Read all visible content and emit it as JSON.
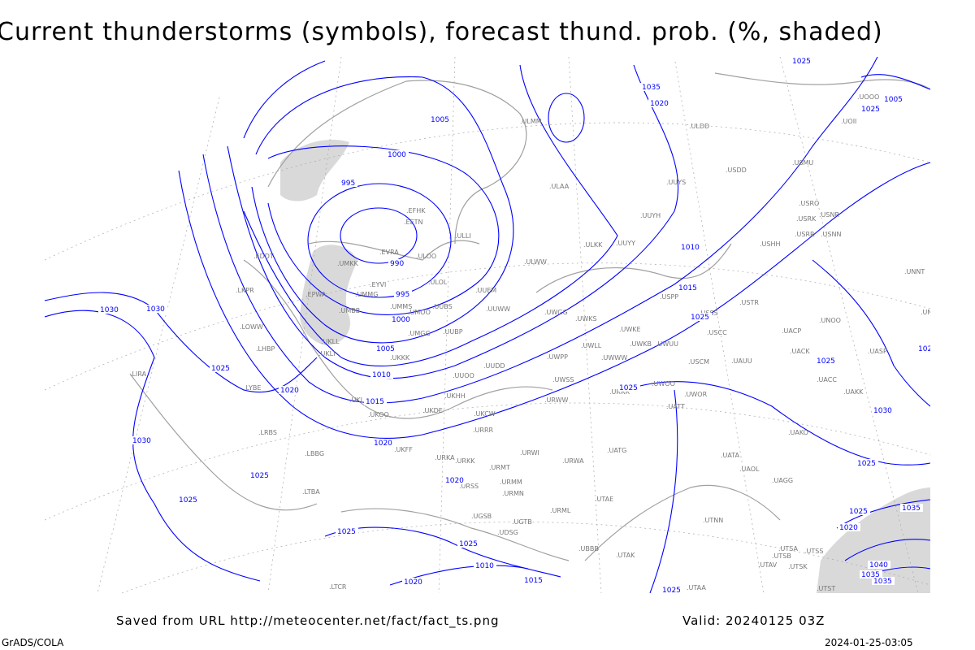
{
  "title": "Current thunderstorms (symbols), forecast thund. prob. (%, shaded)",
  "footer": {
    "saved_from": "Saved from URL http://meteocenter.net/fact/fact_ts.png",
    "valid": "Valid: 20240125 03Z",
    "software": "GrADS/COLA",
    "generated": "2024-01-25-03:05"
  },
  "colors": {
    "isobar": "#0000ff",
    "land": "#a0a0a0",
    "shading": "#d9d9d9",
    "grid": "#999999"
  },
  "isobar_labels": [
    "1030",
    "1005",
    "1000",
    "995",
    "990",
    "995",
    "1000",
    "1005",
    "1010",
    "1015",
    "1020",
    "1025",
    "1035",
    "1030",
    "1025",
    "1020",
    "1015",
    "1010",
    "1005",
    "1025",
    "1025",
    "1020",
    "1030",
    "1025",
    "1025",
    "1020",
    "1025",
    "1025",
    "1030",
    "1025",
    "1035",
    "1040",
    "1035",
    "1035",
    "1025",
    "1020",
    "1025",
    "1025",
    "1020",
    "1015",
    "1010",
    "1020",
    "1025",
    "1025"
  ],
  "stations": [
    "ULLI",
    "EFHK",
    "EETN",
    "EVRA",
    "ULOO",
    "ULOL",
    "UMKK",
    "EYVI",
    "UMMG",
    "EPWA",
    "UMBB",
    "UMMS",
    "UMOO",
    "UUBS",
    "UMGG",
    "UUBP",
    "UUEM",
    "UUWW",
    "UWGG",
    "UWKS",
    "UWKE",
    "UWKB",
    "UWUU",
    "USSS",
    "USCC",
    "USCM",
    "UAUU",
    "UACK",
    "UACP",
    "USTR",
    "USPP",
    "UNOO",
    "UASP",
    "UACC",
    "UAKK",
    "UAKO",
    "UATA",
    "UAOL",
    "UAGG",
    "UTNN",
    "UTSA",
    "UTSS",
    "UTSB",
    "UTAV",
    "UTSK",
    "UTST",
    "UTAA",
    "UTAK",
    "UTAE",
    "URMM",
    "URMN",
    "URMT",
    "URWI",
    "URWA",
    "UATG",
    "URML",
    "UBBB",
    "UGTB",
    "UDSG",
    "UGSB",
    "URSS",
    "URKK",
    "URKA",
    "UKFF",
    "UKOO",
    "UKDE",
    "UKHH",
    "UUOO",
    "UUDD",
    "UWPP",
    "UWWW",
    "UWLL",
    "UWSS",
    "URWW",
    "UATT",
    "UWOO",
    "UWOR",
    "URRR",
    "URRR",
    "UKCW",
    "UKKK",
    "UKLL",
    "UKLI",
    "UKLL",
    "LRBS",
    "LBBG",
    "LYBE",
    "LHBP",
    "LOWW",
    "LKPR",
    "EDDT",
    "LIRA",
    "LTBA",
    "LTCR",
    "ULMM",
    "ULAA",
    "UUYY",
    "UUYH",
    "UUYS",
    "ULKK",
    "ULWW",
    "USDD",
    "ULDD",
    "USMU",
    "USRO",
    "USRK",
    "USNR",
    "USRR",
    "USNN",
    "USHH",
    "UOOO",
    "UOII",
    "UNNT",
    "UNBB"
  ]
}
